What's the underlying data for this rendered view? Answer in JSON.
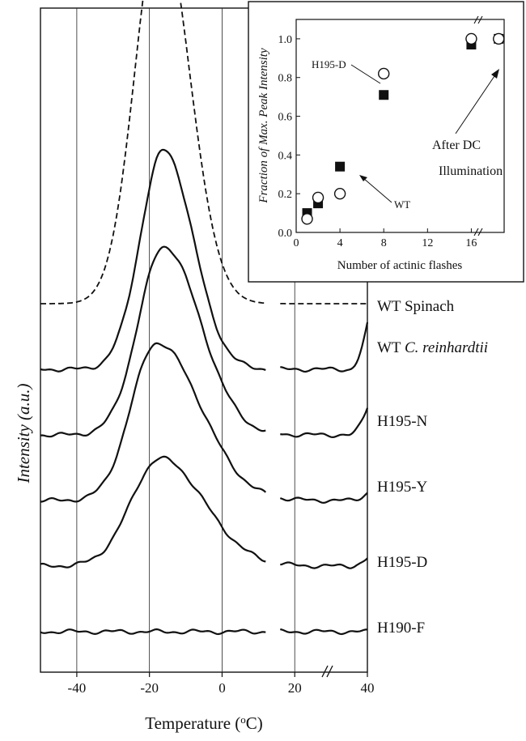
{
  "chart_data": [
    {
      "type": "line",
      "xlabel": "Temperature (°C)",
      "ylabel": "Intensity (a.u.)",
      "x_ticks": [
        "-40",
        "-20",
        "0",
        "20",
        "40"
      ],
      "xlim": [
        -50,
        40
      ],
      "axis_break": [
        12,
        16
      ],
      "grid_x": [
        -40,
        -20,
        0,
        20
      ],
      "series": [
        {
          "name": "WT Spinach",
          "style": "dashed",
          "baseline_offset": 5,
          "peak_x": -17,
          "peak_y": 5.0,
          "width_left": 7,
          "width_right": 8
        },
        {
          "name": "WT C. reinhardtii",
          "style": "solid",
          "baseline_offset": 4,
          "peak_x": -16,
          "peak_y": 2.85,
          "width_left": 6.5,
          "width_right": 8
        },
        {
          "name": "H195-N",
          "style": "solid",
          "baseline_offset": 3,
          "peak_x": -16,
          "peak_y": 2.45,
          "width_left": 7,
          "width_right": 10
        },
        {
          "name": "H195-Y",
          "style": "solid",
          "baseline_offset": 2,
          "peak_x": -18,
          "peak_y": 2.05,
          "width_left": 7,
          "width_right": 12
        },
        {
          "name": "H195-D",
          "style": "solid",
          "baseline_offset": 1,
          "peak_x": -17,
          "peak_y": 1.4,
          "width_left": 8,
          "width_right": 12
        },
        {
          "name": "H190-F",
          "style": "solid",
          "baseline_offset": 0,
          "peak_x": -17,
          "peak_y": 0.0,
          "width_left": 8,
          "width_right": 12
        }
      ]
    },
    {
      "type": "scatter",
      "xlabel": "Number of actinic flashes",
      "ylabel": "Fraction of Max. Peak Intensity",
      "x_ticks": [
        "0",
        "4",
        "8",
        "12",
        "16"
      ],
      "y_ticks": [
        "0.0",
        "0.2",
        "0.4",
        "0.6",
        "0.8",
        "1.0"
      ],
      "xlim": [
        0,
        19
      ],
      "ylim": [
        0,
        1.1
      ],
      "series": [
        {
          "name": "WT",
          "marker": "filled-square",
          "x": [
            1,
            2,
            4,
            8,
            16
          ],
          "y": [
            0.1,
            0.15,
            0.34,
            0.71,
            0.97
          ]
        },
        {
          "name": "H195-D",
          "marker": "open-circle",
          "x": [
            1,
            2,
            4,
            8,
            16
          ],
          "y": [
            0.07,
            0.18,
            0.2,
            0.82,
            1.0
          ]
        }
      ],
      "after_dc": {
        "x": 18.5,
        "wt_y": 1.0,
        "h195d_y": 1.0
      },
      "annotations": [
        "H195-D",
        "WT",
        "After DC",
        "Illumination"
      ]
    }
  ]
}
